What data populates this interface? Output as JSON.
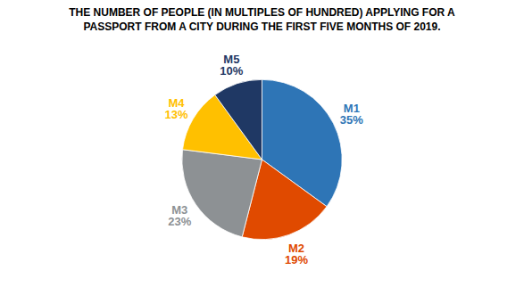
{
  "chart_data": {
    "type": "pie",
    "title": "THE NUMBER OF PEOPLE (IN MULTIPLES OF HUNDRED) APPLYING FOR A\nPASSPORT FROM A CITY DURING THE FIRST FIVE MONTHS OF 2019.",
    "categories": [
      "M1",
      "M2",
      "M3",
      "M4",
      "M5"
    ],
    "values": [
      35,
      19,
      23,
      13,
      10
    ],
    "value_labels": [
      "35%",
      "19%",
      "23%",
      "13%",
      "10%"
    ],
    "colors": [
      "#2e75b6",
      "#e04a00",
      "#8d9194",
      "#ffc000",
      "#1f3864"
    ],
    "data_labels": true
  }
}
